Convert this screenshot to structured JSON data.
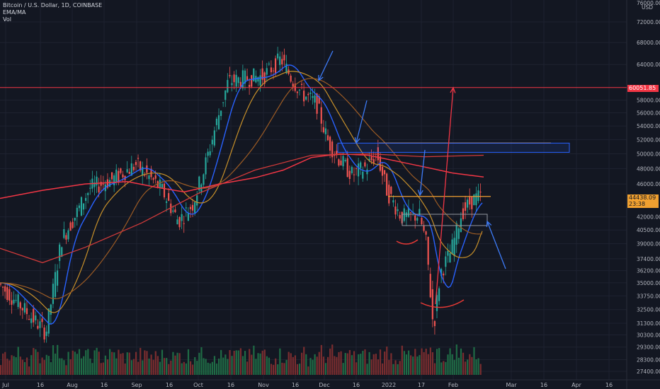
{
  "legend": {
    "symbol_line": "Bitcoin / U.S. Dollar, 1D, COINBASE",
    "ema_line": "EMA/MA",
    "vol_line": "Vol"
  },
  "price_axis": {
    "currency_top": "76000.00",
    "currency_label": "USD",
    "ticks": [
      "72000.00",
      "68000.00",
      "64000.00",
      "58000.00",
      "56000.00",
      "54000.00",
      "52000.00",
      "50000.00",
      "48000.00",
      "46000.00",
      "42000.00",
      "40500.00",
      "39000.00",
      "37400.00",
      "36200.00",
      "35000.00",
      "33750.00",
      "32500.00",
      "31300.00",
      "30300.00",
      "29300.00",
      "28300.00",
      "27400.00"
    ],
    "tick_values": [
      72000,
      68000,
      64000,
      58000,
      56000,
      54000,
      52000,
      50000,
      48000,
      46000,
      42000,
      40500,
      39000,
      37400,
      36200,
      35000,
      33750,
      32500,
      31300,
      30300,
      29300,
      28300,
      27400
    ]
  },
  "time_axis": {
    "labels": [
      "Jul",
      "16",
      "Aug",
      "16",
      "Sep",
      "16",
      "Oct",
      "16",
      "Nov",
      "16",
      "Dec",
      "16",
      "2022",
      "17",
      "Feb",
      "Mar",
      "16",
      "Apr",
      "16"
    ]
  },
  "price_tags": {
    "level_red": "60051.85",
    "last_price": "44438.09",
    "countdown": "23:38"
  },
  "colors": {
    "background": "#131722",
    "up": "#26a69a",
    "down": "#ef5350",
    "ema_fast": "#2962ff",
    "ema_mid": "#c7902a",
    "ema_slow": "#9c5b24",
    "ma_long": "#f23645",
    "level_orange": "#f0a030",
    "box_blue": "#2962ff",
    "annotation_arrow": "#3d7bf7"
  },
  "chart_data": {
    "type": "candlestick",
    "symbol": "Bitcoin / U.S. Dollar, 1D, COINBASE",
    "y_axis_labels": [
      "72000.00",
      "68000.00",
      "64000.00",
      "58000.00",
      "56000.00",
      "54000.00",
      "52000.00",
      "50000.00",
      "48000.00",
      "46000.00",
      "42000.00",
      "40500.00",
      "39000.00",
      "37400.00",
      "36200.00",
      "35000.00",
      "33750.00",
      "32500.00",
      "31300.00",
      "30300.00",
      "29300.00",
      "28300.00",
      "27400.00"
    ],
    "ylim": [
      27000,
      76000
    ],
    "y_scale": "log",
    "grid": true,
    "series": [
      {
        "name": "Bitcoin / U.S. Dollar",
        "type": "candlestick",
        "x": [
          "Jul",
          "16",
          "Aug",
          "16",
          "Sep",
          "16",
          "Oct",
          "16",
          "Nov",
          "16",
          "Dec",
          "16",
          "2022",
          "17",
          "Feb"
        ],
        "close": [
          35000,
          31800,
          41500,
          46500,
          47000,
          43500,
          47800,
          61500,
          62000,
          57000,
          49000,
          47200,
          42000,
          36500,
          44400
        ]
      },
      {
        "name": "Vol",
        "type": "volume"
      }
    ],
    "horizontal_levels": [
      {
        "value": 60051.85,
        "color": "#f23645"
      },
      {
        "value": 44438.09,
        "color": "#f0a030"
      },
      {
        "value": 51400,
        "color": "#f0a030"
      }
    ],
    "last_price": 44438.09
  }
}
